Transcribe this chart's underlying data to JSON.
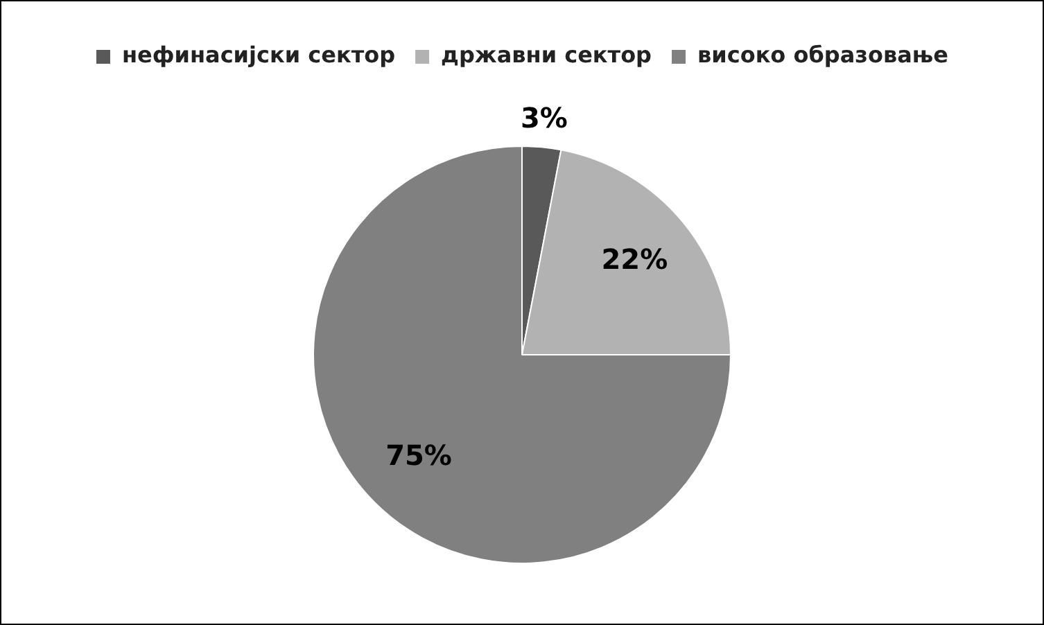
{
  "chart_data": {
    "type": "pie",
    "categories": [
      "нефинасијски сектор",
      "државни сектор",
      "високо образовање"
    ],
    "values": [
      3,
      22,
      75
    ],
    "colors": [
      "#595959",
      "#b2b2b2",
      "#808080"
    ],
    "value_labels": [
      "3%",
      "22%",
      "75%"
    ],
    "legend": "top"
  }
}
